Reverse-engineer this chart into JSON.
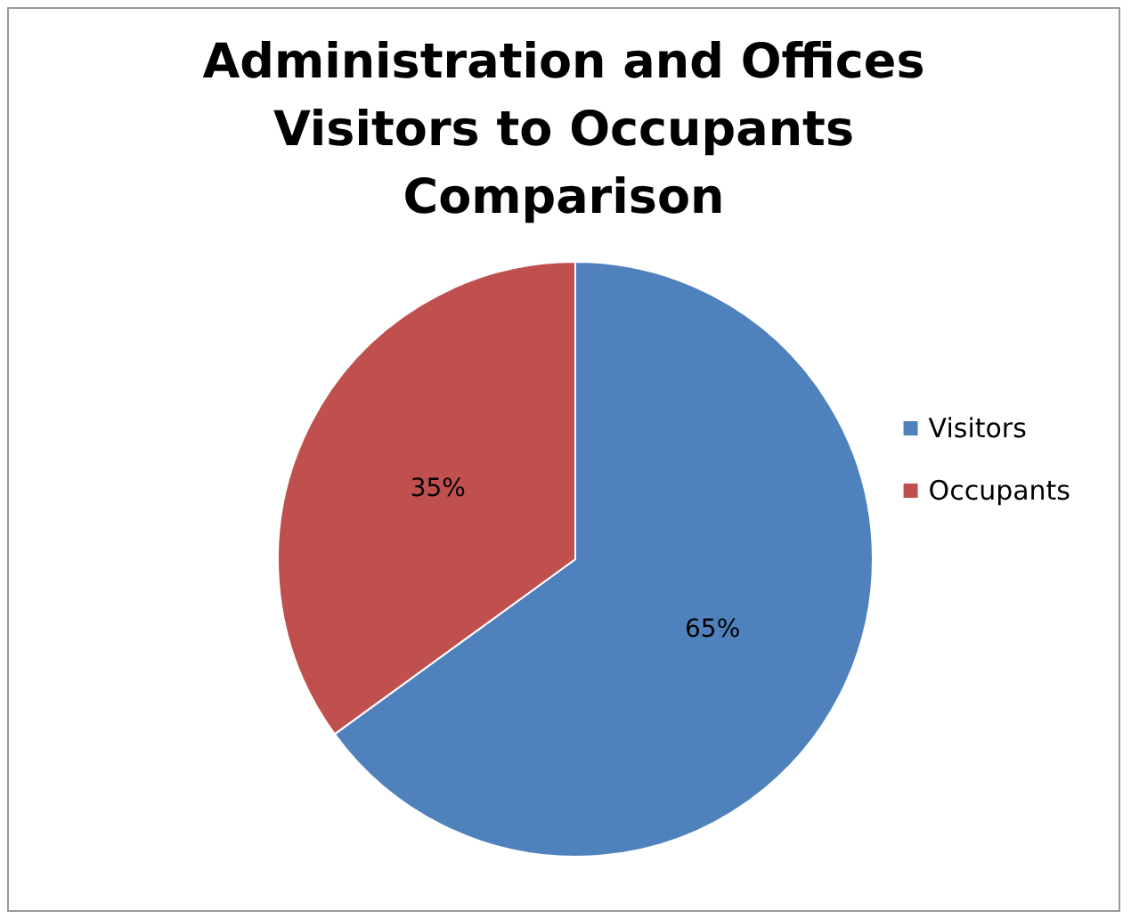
{
  "chart_data": {
    "type": "pie",
    "title": "Administration and Offices\nVisitors to Occupants\nComparison",
    "categories": [
      "Visitors",
      "Occupants"
    ],
    "values": [
      65,
      35
    ],
    "value_labels": [
      "65%",
      "35%"
    ],
    "colors": [
      "#4f81bd",
      "#c0504d"
    ],
    "legend": "right"
  }
}
